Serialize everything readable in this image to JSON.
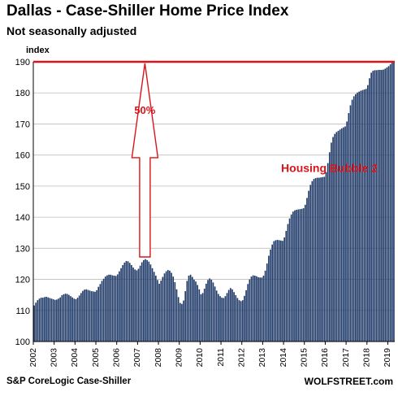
{
  "colors": {
    "bar": "#1f3a68",
    "highlight": "#d9141b",
    "grid": "#bdbdbd",
    "axis": "#000000"
  },
  "chart_data": {
    "type": "bar",
    "title": "Dallas - Case-Shiller Home Price Index",
    "subtitle": "Not seasonally adjusted",
    "ylabel": "index",
    "ylim": [
      100,
      190
    ],
    "yticks": [
      100,
      110,
      120,
      130,
      140,
      150,
      160,
      170,
      180,
      190
    ],
    "x_start_year": 2002,
    "xtick_labels": [
      "2002",
      "2003",
      "2004",
      "2005",
      "2006",
      "2007",
      "2008",
      "2009",
      "2010",
      "2011",
      "2012",
      "2013",
      "2014",
      "2015",
      "2016",
      "2017",
      "2018",
      "2019"
    ],
    "grid": true,
    "legend": "none",
    "values": [
      111.6,
      112.5,
      113.3,
      113.8,
      114.1,
      114.1,
      114.3,
      114.4,
      114.2,
      114.0,
      113.8,
      113.6,
      113.4,
      113.5,
      113.8,
      114.2,
      114.9,
      115.2,
      115.4,
      115.3,
      115.0,
      114.6,
      114.2,
      113.8,
      113.6,
      114.1,
      114.8,
      115.6,
      116.3,
      116.7,
      116.8,
      116.6,
      116.4,
      116.2,
      116.1,
      116.0,
      116.5,
      117.6,
      118.5,
      119.5,
      120.2,
      120.9,
      121.3,
      121.5,
      121.5,
      121.3,
      121.2,
      121.1,
      121.6,
      122.6,
      123.6,
      124.6,
      125.4,
      125.9,
      125.8,
      125.3,
      124.6,
      123.8,
      123.2,
      122.9,
      123.4,
      124.4,
      125.5,
      126.2,
      126.5,
      126.2,
      125.7,
      124.8,
      123.6,
      122.4,
      121.2,
      119.8,
      118.6,
      119.6,
      120.8,
      121.9,
      122.6,
      123.0,
      122.8,
      122.1,
      120.9,
      119.1,
      116.8,
      114.3,
      112.4,
      112.1,
      113.2,
      116.2,
      119.5,
      121.2,
      121.5,
      120.8,
      119.9,
      119.3,
      118.2,
      116.8,
      115.2,
      115.6,
      117.0,
      118.6,
      119.8,
      120.3,
      119.9,
      119.0,
      117.7,
      116.4,
      115.3,
      114.6,
      114.1,
      114.0,
      114.6,
      115.6,
      116.6,
      117.2,
      116.8,
      115.9,
      114.9,
      114.0,
      113.3,
      113.0,
      113.3,
      114.7,
      116.5,
      118.5,
      120.0,
      120.9,
      121.3,
      121.2,
      121.0,
      120.7,
      120.6,
      120.6,
      121.2,
      122.8,
      125.1,
      127.6,
      129.6,
      131.2,
      132.3,
      132.6,
      132.7,
      132.6,
      132.5,
      132.4,
      133.5,
      135.6,
      137.8,
      139.6,
      140.9,
      141.8,
      142.2,
      142.4,
      142.5,
      142.6,
      142.7,
      142.9,
      144.0,
      146.2,
      148.5,
      150.4,
      151.6,
      152.3,
      152.6,
      152.7,
      152.7,
      152.8,
      152.9,
      153.0,
      154.5,
      157.4,
      160.9,
      164.0,
      165.8,
      166.8,
      167.4,
      167.8,
      168.2,
      168.6,
      168.9,
      169.2,
      170.8,
      173.5,
      176.0,
      177.8,
      178.9,
      179.6,
      180.1,
      180.4,
      180.7,
      180.9,
      181.1,
      181.3,
      182.5,
      184.7,
      186.5,
      187.1,
      187.3,
      187.3,
      187.4,
      187.4,
      187.4,
      187.5,
      187.8,
      188.2,
      188.6,
      189.2,
      189.9,
      190.0
    ],
    "annotations": [
      {
        "text": "50%",
        "type": "arrow",
        "from_value": 127.2,
        "to_value": 189.5,
        "at_year": 2007.35
      },
      {
        "text": "Housing Bubble 2",
        "at_year": 2016.2,
        "at_value": 154.5
      },
      {
        "text": "",
        "type": "hline",
        "value": 190
      }
    ]
  },
  "footer": {
    "source": "S&P CoreLogic Case-Shiller",
    "brand": "WOLFSTREET.com"
  }
}
